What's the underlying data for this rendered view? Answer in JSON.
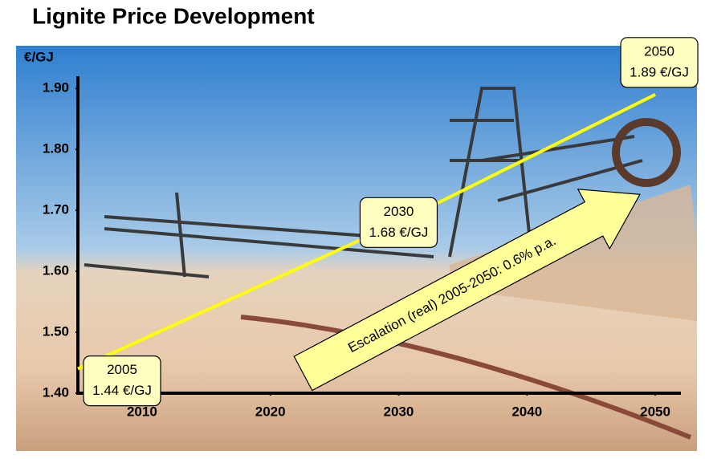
{
  "chart_data": {
    "type": "line",
    "title": "Lignite Price Development",
    "y_label": "€/GJ",
    "x": [
      2005,
      2030,
      2050
    ],
    "values": [
      1.44,
      1.68,
      1.89
    ],
    "value_labels": [
      "1.44 €/GJ",
      "1.68 €/GJ",
      "1.89 €/GJ"
    ],
    "color": "#ffff00",
    "annotation": "Escalation (real) 2005-2050: 0.6% p.a.",
    "xlim": [
      2005,
      2052
    ],
    "xticks": [
      2010,
      2020,
      2030,
      2040,
      2050
    ],
    "ylim": [
      1.4,
      1.92
    ],
    "yticks": [
      {
        "value": 1.4,
        "label": "1.40"
      },
      {
        "value": 1.5,
        "label": "1.50"
      },
      {
        "value": 1.6,
        "label": "1.60"
      },
      {
        "value": 1.7,
        "label": "1.70"
      },
      {
        "value": 1.8,
        "label": "1.80"
      },
      {
        "value": 1.9,
        "label": "1.90"
      }
    ]
  }
}
